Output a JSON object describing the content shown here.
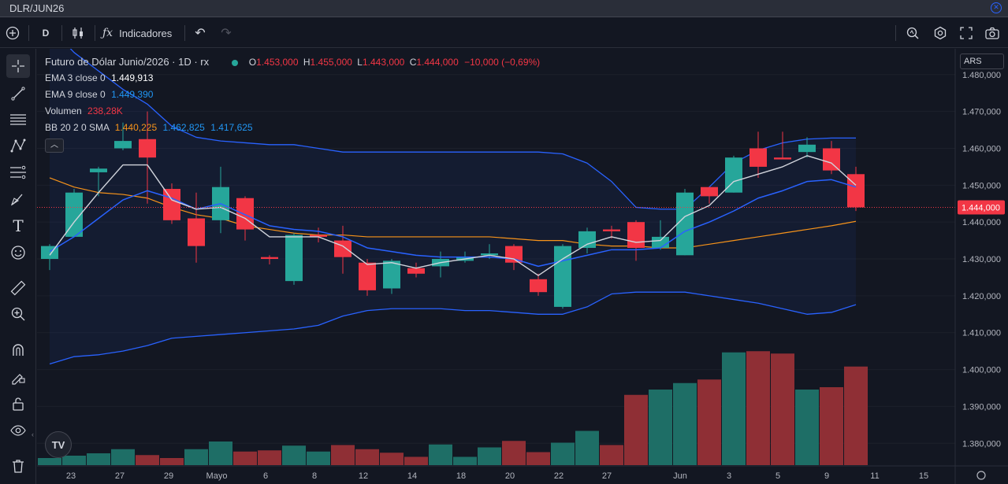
{
  "window": {
    "title": "DLR/JUN26"
  },
  "toolbar": {
    "interval": "D",
    "indicators_label": "Indicadores"
  },
  "legend": {
    "symbol_title": "Futuro de Dólar Junio/2026 · 1D · rx",
    "ohlc": {
      "o_label": "O",
      "o": "1.453,000",
      "h_label": "H",
      "h": "1.455,000",
      "l_label": "L",
      "l": "1.443,000",
      "c_label": "C",
      "c": "1.444,000",
      "change": "−10,000 (−0,69%)"
    },
    "ema3": {
      "label": "EMA 3 close 0",
      "value": "1.449,913"
    },
    "ema9": {
      "label": "EMA 9 close 0",
      "value": "1.449,390"
    },
    "volume": {
      "label": "Volumen",
      "value": "238,28K"
    },
    "bb": {
      "label": "BB 20 2 0 SMA",
      "basis": "1.440,225",
      "upper": "1.462,825",
      "lower": "1.417,625"
    }
  },
  "price_axis": {
    "currency": "ARS",
    "last_price_label": "1.444,000",
    "last_price": 1444000
  },
  "colors": {
    "background": "#131722",
    "up": "#26a69a",
    "down": "#f23645",
    "ema3": "#d1d4dc",
    "ema9": "#2962ff",
    "bb_basis": "#f7931a",
    "bb_band": "#2962ff",
    "vol_up": "#1e6e66",
    "vol_down": "#8f2f35"
  },
  "chart_data": {
    "type": "candlestick",
    "title": "Futuro de Dólar Junio/2026 · 1D · rx",
    "y_axis_ticks": [
      1480000,
      1470000,
      1460000,
      1450000,
      1440000,
      1430000,
      1420000,
      1410000,
      1400000,
      1390000,
      1380000
    ],
    "y_axis_tick_labels": [
      "1.480,000",
      "1.470,000",
      "1.460,000",
      "1.450,000",
      "1.440,000",
      "1.430,000",
      "1.420,000",
      "1.410,000",
      "1.400,000",
      "1.390,000",
      "1.380,000"
    ],
    "ylim": [
      1376000,
      1487000
    ],
    "x_tick_labels": [
      "23",
      "27",
      "29",
      "Mayo",
      "6",
      "8",
      "12",
      "14",
      "18",
      "20",
      "22",
      "27",
      "Jun",
      "3",
      "5",
      "9",
      "11",
      "15"
    ],
    "candles": [
      {
        "o": 1430000,
        "h": 1434000,
        "l": 1427000,
        "c": 1433500
      },
      {
        "o": 1436000,
        "h": 1449000,
        "l": 1436000,
        "c": 1448000
      },
      {
        "o": 1453500,
        "h": 1455000,
        "l": 1447000,
        "c": 1454500
      },
      {
        "o": 1460000,
        "h": 1467000,
        "l": 1459500,
        "c": 1462000
      },
      {
        "o": 1462500,
        "h": 1470000,
        "l": 1445000,
        "c": 1457500
      },
      {
        "o": 1449000,
        "h": 1450500,
        "l": 1439500,
        "c": 1440500
      },
      {
        "o": 1441000,
        "h": 1448000,
        "l": 1429000,
        "c": 1433500
      },
      {
        "o": 1440500,
        "h": 1455000,
        "l": 1437000,
        "c": 1449500
      },
      {
        "o": 1446500,
        "h": 1447000,
        "l": 1435000,
        "c": 1438000
      },
      {
        "o": 1430500,
        "h": 1431000,
        "l": 1428500,
        "c": 1430000
      },
      {
        "o": 1424000,
        "h": 1437000,
        "l": 1423000,
        "c": 1436500
      },
      {
        "o": 1436500,
        "h": 1438500,
        "l": 1434500,
        "c": 1436000
      },
      {
        "o": 1435000,
        "h": 1439000,
        "l": 1426000,
        "c": 1430500
      },
      {
        "o": 1429000,
        "h": 1430000,
        "l": 1420000,
        "c": 1421500
      },
      {
        "o": 1422000,
        "h": 1430000,
        "l": 1420500,
        "c": 1429500
      },
      {
        "o": 1427500,
        "h": 1429000,
        "l": 1425000,
        "c": 1426000
      },
      {
        "o": 1428000,
        "h": 1432000,
        "l": 1425000,
        "c": 1430000
      },
      {
        "o": 1429500,
        "h": 1432000,
        "l": 1429000,
        "c": 1430500
      },
      {
        "o": 1431000,
        "h": 1434000,
        "l": 1430000,
        "c": 1431500
      },
      {
        "o": 1433500,
        "h": 1434000,
        "l": 1427000,
        "c": 1429000
      },
      {
        "o": 1424500,
        "h": 1426000,
        "l": 1420000,
        "c": 1421000
      },
      {
        "o": 1417000,
        "h": 1434000,
        "l": 1416500,
        "c": 1433500
      },
      {
        "o": 1433000,
        "h": 1438500,
        "l": 1431500,
        "c": 1437500
      },
      {
        "o": 1438000,
        "h": 1439000,
        "l": 1435500,
        "c": 1437500
      },
      {
        "o": 1440000,
        "h": 1440500,
        "l": 1429500,
        "c": 1433000
      },
      {
        "o": 1433000,
        "h": 1440500,
        "l": 1432500,
        "c": 1436000
      },
      {
        "o": 1431000,
        "h": 1449000,
        "l": 1431000,
        "c": 1448000
      },
      {
        "o": 1449500,
        "h": 1449500,
        "l": 1445000,
        "c": 1447000
      },
      {
        "o": 1448000,
        "h": 1458000,
        "l": 1448000,
        "c": 1457500
      },
      {
        "o": 1460000,
        "h": 1464500,
        "l": 1452000,
        "c": 1455000
      },
      {
        "o": 1457500,
        "h": 1464500,
        "l": 1457000,
        "c": 1457000
      },
      {
        "o": 1459000,
        "h": 1463000,
        "l": 1457500,
        "c": 1461000
      },
      {
        "o": 1460000,
        "h": 1462000,
        "l": 1453000,
        "c": 1454000
      },
      {
        "o": 1453000,
        "h": 1455000,
        "l": 1443000,
        "c": 1444000
      }
    ],
    "volume": [
      {
        "v": 0.12,
        "up": true
      },
      {
        "v": 0.16,
        "up": true
      },
      {
        "v": 0.2,
        "up": true
      },
      {
        "v": 0.27,
        "up": true
      },
      {
        "v": 0.17,
        "up": false
      },
      {
        "v": 0.12,
        "up": false
      },
      {
        "v": 0.27,
        "up": true
      },
      {
        "v": 0.4,
        "up": true
      },
      {
        "v": 0.23,
        "up": false
      },
      {
        "v": 0.25,
        "up": false
      },
      {
        "v": 0.33,
        "up": true
      },
      {
        "v": 0.23,
        "up": true
      },
      {
        "v": 0.34,
        "up": false
      },
      {
        "v": 0.27,
        "up": false
      },
      {
        "v": 0.21,
        "up": false
      },
      {
        "v": 0.14,
        "up": false
      },
      {
        "v": 0.35,
        "up": true
      },
      {
        "v": 0.14,
        "up": true
      },
      {
        "v": 0.3,
        "up": true
      },
      {
        "v": 0.41,
        "up": false
      },
      {
        "v": 0.22,
        "up": false
      },
      {
        "v": 0.38,
        "up": true
      },
      {
        "v": 0.58,
        "up": true
      },
      {
        "v": 0.34,
        "up": false
      },
      {
        "v": 1.19,
        "up": false
      },
      {
        "v": 1.28,
        "up": true
      },
      {
        "v": 1.39,
        "up": true
      },
      {
        "v": 1.45,
        "up": false
      },
      {
        "v": 1.91,
        "up": true
      },
      {
        "v": 1.93,
        "up": false
      },
      {
        "v": 1.89,
        "up": false
      },
      {
        "v": 1.28,
        "up": true
      },
      {
        "v": 1.32,
        "up": false
      },
      {
        "v": 1.67,
        "up": false
      }
    ],
    "ema3": [
      1431000,
      1440000,
      1448000,
      1455500,
      1455500,
      1446000,
      1443500,
      1444000,
      1441000,
      1436000,
      1436000,
      1436000,
      1433500,
      1428500,
      1429000,
      1427500,
      1429000,
      1430000,
      1431000,
      1430000,
      1425500,
      1430000,
      1434000,
      1436000,
      1434500,
      1435000,
      1441500,
      1444500,
      1451000,
      1453000,
      1455000,
      1458000,
      1456000,
      1450000
    ],
    "ema9": [
      1432000,
      1436000,
      1441000,
      1446000,
      1448500,
      1446500,
      1443500,
      1445000,
      1442000,
      1439000,
      1438000,
      1437500,
      1436000,
      1433000,
      1432000,
      1431000,
      1430500,
      1430500,
      1430500,
      1430000,
      1428000,
      1429500,
      1431000,
      1432500,
      1432500,
      1433000,
      1437500,
      1440000,
      1443000,
      1446500,
      1448500,
      1451000,
      1451500,
      1449500
    ],
    "bb_basis": [
      1452000,
      1449500,
      1448000,
      1447500,
      1446500,
      1444000,
      1442000,
      1441000,
      1439000,
      1438000,
      1437000,
      1436500,
      1436500,
      1436000,
      1436000,
      1436000,
      1436000,
      1436000,
      1436000,
      1435500,
      1435000,
      1435000,
      1434000,
      1433500,
      1433500,
      1433000,
      1433000,
      1434000,
      1435000,
      1436000,
      1437000,
      1438000,
      1439000,
      1440200
    ],
    "bb_upper": [
      1493000,
      1486000,
      1481000,
      1476000,
      1472000,
      1466000,
      1463000,
      1462000,
      1461500,
      1461000,
      1461000,
      1460000,
      1459000,
      1459000,
      1459000,
      1459000,
      1459000,
      1459000,
      1459000,
      1459000,
      1459000,
      1458500,
      1456000,
      1451000,
      1444000,
      1443500,
      1443500,
      1449500,
      1456000,
      1459500,
      1461500,
      1462500,
      1462800,
      1462800
    ],
    "bb_lower": [
      1401500,
      1403500,
      1404000,
      1405000,
      1406500,
      1408500,
      1409000,
      1409500,
      1410000,
      1410500,
      1411000,
      1412000,
      1414500,
      1416000,
      1416500,
      1416500,
      1416500,
      1416000,
      1416000,
      1415500,
      1415000,
      1415000,
      1417000,
      1420500,
      1421000,
      1421000,
      1421000,
      1420000,
      1419000,
      1418000,
      1416500,
      1415000,
      1415500,
      1417600
    ]
  }
}
